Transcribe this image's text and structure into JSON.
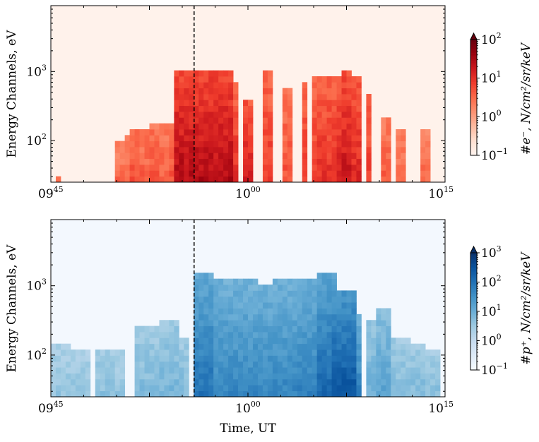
{
  "chart_data": [
    {
      "type": "heatmap",
      "name": "electron-spectrogram",
      "ylabel": "Energy Channels, eV",
      "xlabel": "",
      "x_range_minutes": [
        0,
        30
      ],
      "x_ticks": [
        {
          "minute": 0,
          "base": "09",
          "sup": "45"
        },
        {
          "minute": 15,
          "base": "10",
          "sup": "00"
        },
        {
          "minute": 30,
          "base": "10",
          "sup": "15"
        }
      ],
      "y_scale": "log",
      "y_range_eV": [
        25,
        9000
      ],
      "y_ticks": [
        {
          "value": 100,
          "base": "10",
          "sup": "2"
        },
        {
          "value": 1000,
          "base": "10",
          "sup": "3"
        }
      ],
      "event_marker_minute": 10.9,
      "colormap": [
        "#fff5f0",
        "#fee0d2",
        "#fcbba1",
        "#fc9272",
        "#fb6a4a",
        "#ef3b2c",
        "#cb181d",
        "#99000d",
        "#67000d"
      ],
      "colorbar": {
        "label": "#e⁻, N/cm²/sr/keV",
        "min_exp": -1,
        "max_exp": 2,
        "ticks": [
          {
            "base": "10",
            "sup": "−1"
          },
          {
            "base": "10",
            "sup": "0"
          },
          {
            "base": "10",
            "sup": "1"
          },
          {
            "base": "10",
            "sup": "2"
          }
        ]
      },
      "background_log": -0.9,
      "bursts": [
        {
          "t": 0.5,
          "w": 0.3,
          "top": 30,
          "a": 0.4
        },
        {
          "t": 5.3,
          "w": 0.3,
          "top": 90,
          "a": 0.5
        },
        {
          "t": 5.9,
          "w": 0.3,
          "top": 110,
          "a": 0.5
        },
        {
          "t": 6.5,
          "w": 0.35,
          "top": 140,
          "a": 0.7
        },
        {
          "t": 7.2,
          "w": 0.3,
          "top": 160,
          "a": 0.6
        },
        {
          "t": 7.9,
          "w": 0.35,
          "top": 170,
          "a": 0.7
        },
        {
          "t": 8.6,
          "w": 0.3,
          "top": 180,
          "a": 0.6
        },
        {
          "t": 9.3,
          "w": 0.3,
          "top": 170,
          "a": 0.7
        },
        {
          "t": 10.1,
          "w": 0.3,
          "top": 130,
          "a": 0.6
        },
        {
          "t": 11.6,
          "w": 2.2,
          "top": 950,
          "a": 1.45
        },
        {
          "t": 13.5,
          "w": 0.4,
          "top": 300,
          "a": 0.8
        },
        {
          "t": 14.1,
          "w": 0.3,
          "top": 700,
          "a": 1.0
        },
        {
          "t": 15.0,
          "w": 0.35,
          "top": 400,
          "a": 1.2
        },
        {
          "t": 16.6,
          "w": 0.3,
          "top": 950,
          "a": 0.9
        },
        {
          "t": 17.9,
          "w": 0.3,
          "top": 600,
          "a": 0.7
        },
        {
          "t": 19.3,
          "w": 0.35,
          "top": 750,
          "a": 0.9
        },
        {
          "t": 20.0,
          "w": 0.3,
          "top": 800,
          "a": 0.9
        },
        {
          "t": 20.6,
          "w": 0.35,
          "top": 900,
          "a": 1.0
        },
        {
          "t": 21.3,
          "w": 0.3,
          "top": 850,
          "a": 1.0
        },
        {
          "t": 22.0,
          "w": 0.35,
          "top": 900,
          "a": 1.2
        },
        {
          "t": 22.6,
          "w": 0.35,
          "top": 1000,
          "a": 1.3
        },
        {
          "t": 23.3,
          "w": 0.3,
          "top": 900,
          "a": 1.1
        },
        {
          "t": 24.2,
          "w": 0.3,
          "top": 500,
          "a": 0.9
        },
        {
          "t": 25.5,
          "w": 0.3,
          "top": 200,
          "a": 0.6
        },
        {
          "t": 26.6,
          "w": 0.25,
          "top": 150,
          "a": 0.5
        },
        {
          "t": 28.5,
          "w": 0.3,
          "top": 150,
          "a": 0.5
        }
      ]
    },
    {
      "type": "heatmap",
      "name": "proton-spectrogram",
      "ylabel": "Energy Channels, eV",
      "xlabel": "Time, UT",
      "x_range_minutes": [
        0,
        30
      ],
      "x_ticks": [
        {
          "minute": 0,
          "base": "09",
          "sup": "45"
        },
        {
          "minute": 15,
          "base": "10",
          "sup": "00"
        },
        {
          "minute": 30,
          "base": "10",
          "sup": "15"
        }
      ],
      "y_scale": "log",
      "y_range_eV": [
        25,
        9000
      ],
      "y_ticks": [
        {
          "value": 100,
          "base": "10",
          "sup": "2"
        },
        {
          "value": 1000,
          "base": "10",
          "sup": "3"
        }
      ],
      "event_marker_minute": 10.9,
      "colormap": [
        "#f7fbff",
        "#deebf7",
        "#c6dbef",
        "#9ecae1",
        "#6baed6",
        "#4292c6",
        "#2171b5",
        "#08519c",
        "#08306b"
      ],
      "colorbar": {
        "label": "#p⁺, N/cm²/sr/keV",
        "min_exp": -1,
        "max_exp": 3,
        "ticks": [
          {
            "base": "10",
            "sup": "−1"
          },
          {
            "base": "10",
            "sup": "0"
          },
          {
            "base": "10",
            "sup": "1"
          },
          {
            "base": "10",
            "sup": "2"
          },
          {
            "base": "10",
            "sup": "3"
          }
        ]
      },
      "background_log": -0.9,
      "bursts": [
        {
          "t": 0.8,
          "w": 0.8,
          "top": 140,
          "a": 0.6
        },
        {
          "t": 2.3,
          "w": 0.8,
          "top": 110,
          "a": 0.6
        },
        {
          "t": 4.0,
          "w": 0.8,
          "top": 130,
          "a": 0.7
        },
        {
          "t": 5.2,
          "w": 0.5,
          "top": 110,
          "a": 0.6
        },
        {
          "t": 7.4,
          "w": 1.0,
          "top": 260,
          "a": 0.8
        },
        {
          "t": 9.0,
          "w": 0.6,
          "top": 320,
          "a": 0.9
        },
        {
          "t": 10.0,
          "w": 0.4,
          "top": 180,
          "a": 0.8
        },
        {
          "t": 11.6,
          "w": 0.9,
          "top": 1500,
          "a": 2.0
        },
        {
          "t": 13.0,
          "w": 1.0,
          "top": 1300,
          "a": 1.7
        },
        {
          "t": 14.6,
          "w": 1.0,
          "top": 1200,
          "a": 1.7
        },
        {
          "t": 16.3,
          "w": 1.1,
          "top": 1100,
          "a": 1.7
        },
        {
          "t": 18.0,
          "w": 1.0,
          "top": 1300,
          "a": 1.7
        },
        {
          "t": 19.8,
          "w": 1.0,
          "top": 1300,
          "a": 1.8
        },
        {
          "t": 21.0,
          "w": 0.9,
          "top": 1400,
          "a": 2.2
        },
        {
          "t": 22.3,
          "w": 0.9,
          "top": 900,
          "a": 2.5
        },
        {
          "t": 23.2,
          "w": 0.6,
          "top": 400,
          "a": 1.8
        },
        {
          "t": 24.3,
          "w": 0.4,
          "top": 300,
          "a": 1.0
        },
        {
          "t": 25.3,
          "w": 0.5,
          "top": 500,
          "a": 1.2
        },
        {
          "t": 26.6,
          "w": 0.6,
          "top": 170,
          "a": 0.8
        },
        {
          "t": 27.8,
          "w": 0.7,
          "top": 150,
          "a": 0.8
        },
        {
          "t": 29.0,
          "w": 0.6,
          "top": 130,
          "a": 0.7
        }
      ]
    }
  ]
}
